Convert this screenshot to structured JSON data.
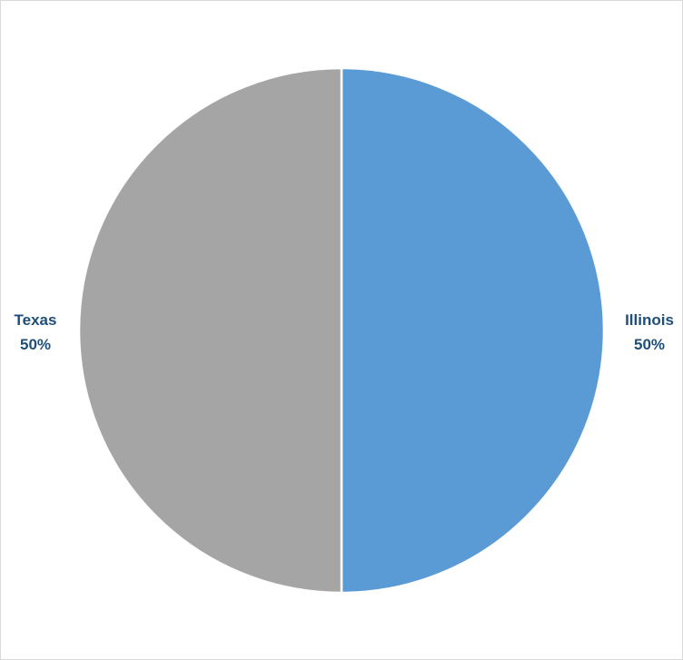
{
  "chart_data": {
    "type": "pie",
    "title": "",
    "legend": "none",
    "slices": [
      {
        "label": "Illinois",
        "value": 50,
        "display": "50%",
        "color": "#5b9bd5"
      },
      {
        "label": "Texas",
        "value": 50,
        "display": "50%",
        "color": "#a5a5a5"
      }
    ]
  }
}
